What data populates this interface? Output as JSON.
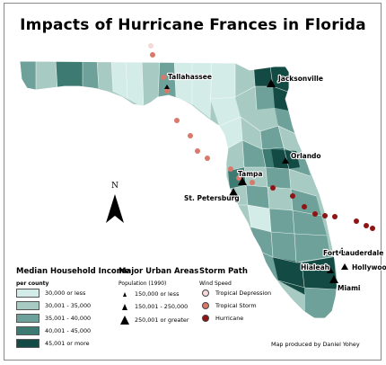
{
  "title": "Impacts of Hurricane Frances in Florida",
  "credit": "Map produced by Daniel Yohey",
  "north_label": "N",
  "colors": {
    "income": [
      "#d4ece7",
      "#a7cbc2",
      "#6ea19a",
      "#3d7a72",
      "#134a43"
    ],
    "storm": {
      "tropical_depression": "#f7d9d9",
      "tropical_storm": "#d9796b",
      "hurricane": "#8f1414"
    },
    "water": "#ffffff",
    "border": "#ffffff"
  },
  "legend_income": {
    "title": "Median Household Income",
    "subtitle": "per county",
    "items": [
      {
        "label": "30,000 or less",
        "color": "#d4ece7"
      },
      {
        "label": "30,001 - 35,000",
        "color": "#a7cbc2"
      },
      {
        "label": "35,001 - 40,000",
        "color": "#6ea19a"
      },
      {
        "label": "40,001 - 45,000",
        "color": "#3d7a72"
      },
      {
        "label": "45,001 or more",
        "color": "#134a43"
      }
    ]
  },
  "legend_urban": {
    "title": "Major Urban Areas",
    "subtitle": "Population (1990)",
    "items": [
      {
        "label": "150,000 or less",
        "size": "small"
      },
      {
        "label": "150,001 - 250,000",
        "size": "medium"
      },
      {
        "label": "250,001 or greater",
        "size": "large"
      }
    ]
  },
  "legend_storm": {
    "title": "Storm Path",
    "subtitle": "Wind Speed",
    "items": [
      {
        "label": "Tropical Depression",
        "color": "#f7d9d9"
      },
      {
        "label": "Tropical Storm",
        "color": "#d9796b"
      },
      {
        "label": "Hurricane",
        "color": "#8f1414"
      }
    ]
  },
  "cities": [
    {
      "name": "Tallahassee",
      "size": "small"
    },
    {
      "name": "Jacksonville",
      "size": "large"
    },
    {
      "name": "Orlando",
      "size": "medium"
    },
    {
      "name": "Tampa",
      "size": "large"
    },
    {
      "name": "St. Petersburg",
      "size": "large"
    },
    {
      "name": "Fort Lauderdale",
      "size": "medium"
    },
    {
      "name": "Hialeah",
      "size": "medium"
    },
    {
      "name": "Hollywood",
      "size": "medium"
    },
    {
      "name": "Miami",
      "size": "large"
    }
  ]
}
